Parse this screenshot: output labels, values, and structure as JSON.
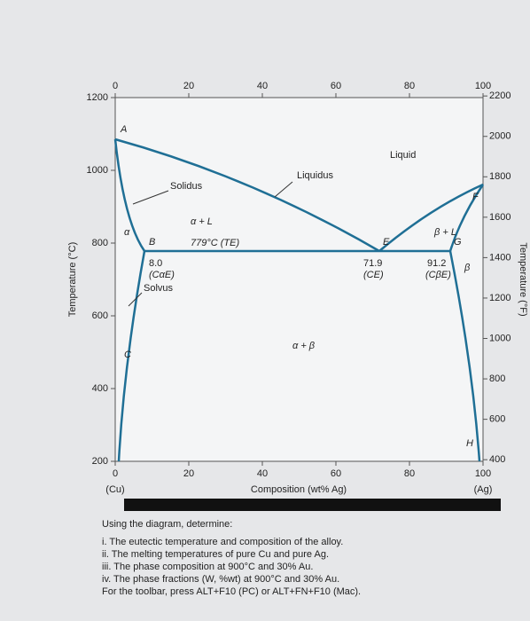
{
  "diagram": {
    "y_axis_label": "Temperature (°C)",
    "y2_axis_label": "Temperature (°F)",
    "x_axis_label": "Composition (wt% Ag)",
    "x_left_label": "(Cu)",
    "x_right_label": "(Ag)",
    "xticks": [
      0,
      20,
      40,
      60,
      80,
      100
    ],
    "yticks": [
      200,
      400,
      600,
      800,
      1000,
      1200
    ],
    "y2ticks": [
      400,
      600,
      800,
      1000,
      1200,
      1400,
      1600,
      1800,
      2000,
      2200
    ],
    "regions": {
      "liquid": "Liquid",
      "alpha_l": "α + L",
      "beta_l": "β + L",
      "alpha_beta": "α + β",
      "alpha": "α",
      "beta": "β"
    },
    "curves": {
      "liquidus": "Liquidus",
      "solidus": "Solidus",
      "solvus": "Solvus"
    },
    "eutectic": "779°C (TE)",
    "points": {
      "a": "A",
      "b": "B",
      "c": "C",
      "e": "E",
      "f": "F",
      "g": "G",
      "h": "H"
    },
    "compositions": {
      "alpha_value": "8.0",
      "alpha_name": "(CαE)",
      "eutectic_value": "71.9",
      "eutectic_name": "(CE)",
      "beta_value": "91.2",
      "beta_name": "(CβE)"
    }
  },
  "questions": {
    "intro": "Using the diagram, determine:",
    "items": [
      "i.  The eutectic temperature and composition of the alloy.",
      "ii.  The melting temperatures of pure Cu and pure Ag.",
      "iii.  The phase composition at 900°C and 30% Au.",
      "iv.  The phase fractions (W, %wt) at 900°C and 30% Au."
    ],
    "toolbar": "For the toolbar, press ALT+F10 (PC) or ALT+FN+F10 (Mac)."
  }
}
